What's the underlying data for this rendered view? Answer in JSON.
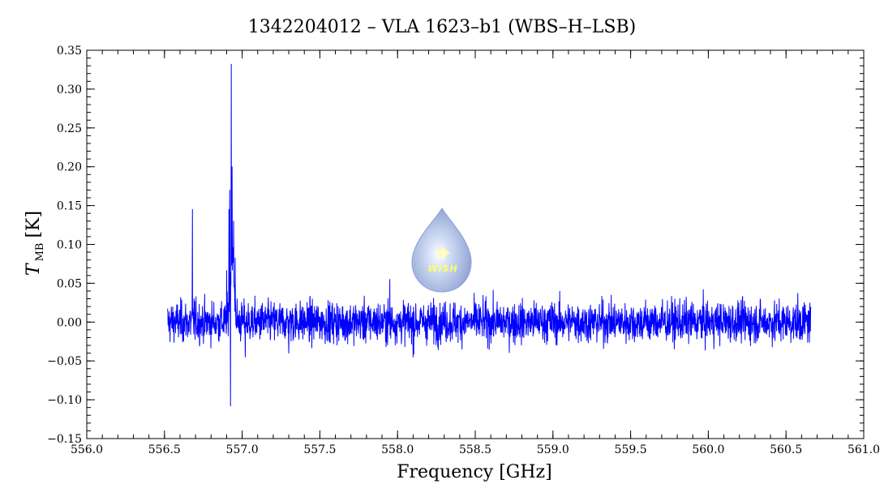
{
  "chart_data": {
    "type": "line",
    "title": "1342204012 – VLA 1623–b1 (WBS–H–LSB)",
    "xlabel": "Frequency [GHz]",
    "ylabel_main": "T",
    "ylabel_sub": "MB",
    "ylabel_unit": "[K]",
    "xlim": [
      556.0,
      561.0
    ],
    "ylim": [
      -0.15,
      0.35
    ],
    "x_ticks": [
      {
        "value": 556.0,
        "label": "556.0"
      },
      {
        "value": 556.5,
        "label": "556.5"
      },
      {
        "value": 557.0,
        "label": "557.0"
      },
      {
        "value": 557.5,
        "label": "557.5"
      },
      {
        "value": 558.0,
        "label": "558.0"
      },
      {
        "value": 558.5,
        "label": "558.5"
      },
      {
        "value": 559.0,
        "label": "559.0"
      },
      {
        "value": 559.5,
        "label": "559.5"
      },
      {
        "value": 560.0,
        "label": "560.0"
      },
      {
        "value": 560.5,
        "label": "560.5"
      },
      {
        "value": 561.0,
        "label": "561.0"
      }
    ],
    "y_ticks": [
      {
        "value": -0.15,
        "label": "−0.15"
      },
      {
        "value": -0.1,
        "label": "−0.10"
      },
      {
        "value": -0.05,
        "label": "−0.05"
      },
      {
        "value": 0.0,
        "label": "0.00"
      },
      {
        "value": 0.05,
        "label": "0.05"
      },
      {
        "value": 0.1,
        "label": "0.10"
      },
      {
        "value": 0.15,
        "label": "0.15"
      },
      {
        "value": 0.2,
        "label": "0.20"
      },
      {
        "value": 0.25,
        "label": "0.25"
      },
      {
        "value": 0.3,
        "label": "0.30"
      },
      {
        "value": 0.35,
        "label": "0.35"
      }
    ],
    "grid": false,
    "series": [
      {
        "color": "#0000ff",
        "x_start": 556.52,
        "x_end": 560.66,
        "noise_rms": 0.013,
        "features": [
          {
            "x": 556.68,
            "y": 0.145
          },
          {
            "x": 556.69,
            "y": 0.03
          },
          {
            "x": 556.9,
            "y": 0.065
          },
          {
            "x": 556.915,
            "y": 0.145
          },
          {
            "x": 556.92,
            "y": 0.17
          },
          {
            "x": 556.925,
            "y": -0.108
          },
          {
            "x": 556.93,
            "y": 0.332
          },
          {
            "x": 556.935,
            "y": 0.2
          },
          {
            "x": 556.945,
            "y": 0.13
          },
          {
            "x": 556.955,
            "y": 0.06
          },
          {
            "x": 557.02,
            "y": -0.045
          },
          {
            "x": 557.3,
            "y": -0.04
          },
          {
            "x": 557.95,
            "y": 0.055
          },
          {
            "x": 558.1,
            "y": -0.045
          }
        ]
      }
    ]
  },
  "logo": {
    "text": "WISH",
    "fill_color": "#9fb4e0",
    "star_color": "#ffff99"
  }
}
